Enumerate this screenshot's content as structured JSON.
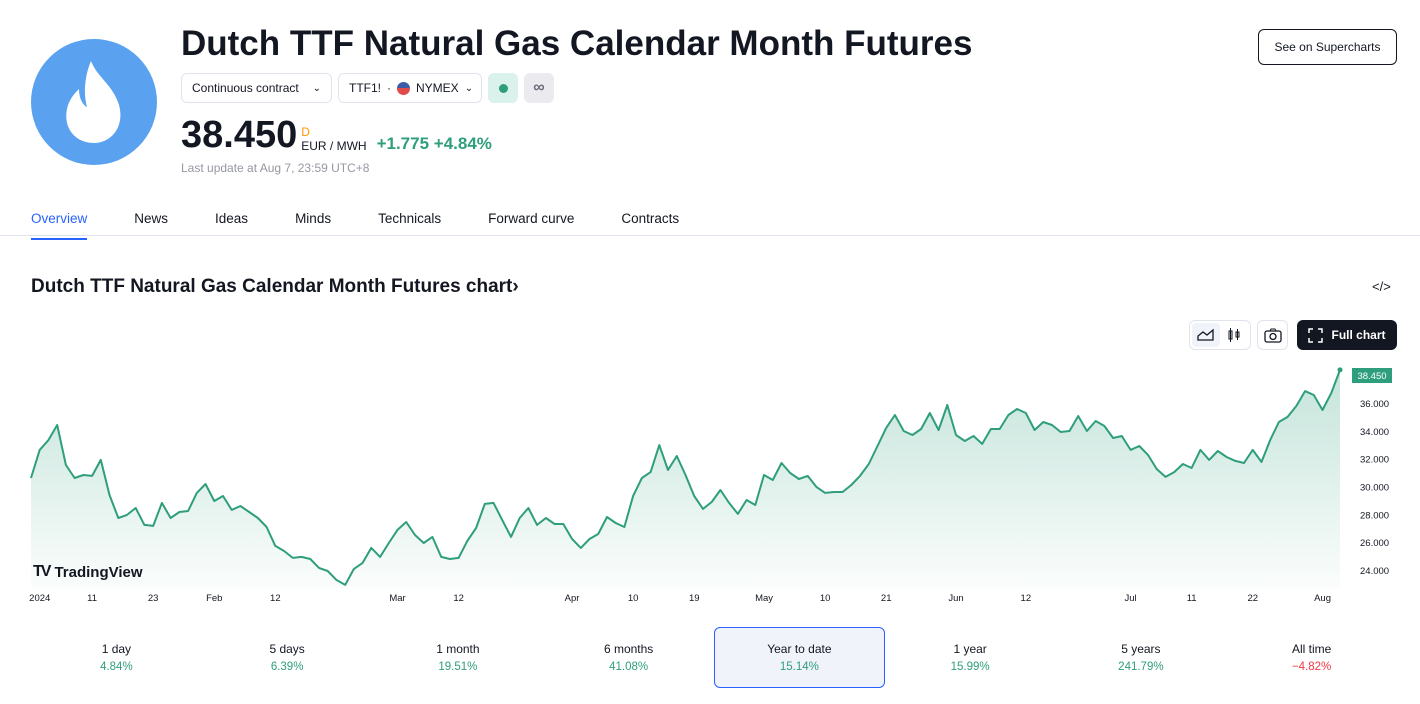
{
  "header": {
    "title": "Dutch TTF Natural Gas Calendar Month Futures",
    "contract_select": "Continuous contract",
    "symbol": "TTF1!",
    "exchange": "NYMEX",
    "price": "38.450",
    "price_marker": "D",
    "unit": "EUR / MWH",
    "change": "+1.775",
    "change_pct": "+4.84%",
    "last_update": "Last update at Aug 7, 23:59 UTC+8",
    "supercharts_button": "See on Supercharts",
    "market_status": "open",
    "accent": "#2e9e7c"
  },
  "tabs": [
    {
      "label": "Overview",
      "active": true
    },
    {
      "label": "News"
    },
    {
      "label": "Ideas"
    },
    {
      "label": "Minds"
    },
    {
      "label": "Technicals"
    },
    {
      "label": "Forward curve"
    },
    {
      "label": "Contracts"
    }
  ],
  "chart_section": {
    "title": "Dutch TTF Natural Gas Calendar Month Futures chart",
    "title_arrow": "›",
    "embed_icon": "</>",
    "full_chart": "Full chart",
    "watermark": "TradingView"
  },
  "chart_data": {
    "type": "area",
    "color": "#2e9e7c",
    "ylim": [
      23,
      38.6
    ],
    "last_value_label": "38.450",
    "y_ticks": [
      "24.000",
      "26.000",
      "28.000",
      "30.000",
      "32.000",
      "34.000",
      "36.000"
    ],
    "x_ticks": [
      {
        "label": "2024",
        "index": 1
      },
      {
        "label": "11",
        "index": 7
      },
      {
        "label": "23",
        "index": 14
      },
      {
        "label": "Feb",
        "index": 21
      },
      {
        "label": "12",
        "index": 28
      },
      {
        "label": "Mar",
        "index": 42
      },
      {
        "label": "12",
        "index": 49
      },
      {
        "label": "Apr",
        "index": 62
      },
      {
        "label": "10",
        "index": 69
      },
      {
        "label": "19",
        "index": 76
      },
      {
        "label": "May",
        "index": 84
      },
      {
        "label": "10",
        "index": 91
      },
      {
        "label": "21",
        "index": 98
      },
      {
        "label": "Jun",
        "index": 106
      },
      {
        "label": "12",
        "index": 114
      },
      {
        "label": "Jul",
        "index": 126
      },
      {
        "label": "11",
        "index": 133
      },
      {
        "label": "22",
        "index": 140
      },
      {
        "label": "Aug",
        "index": 148
      }
    ],
    "values": [
      30.68,
      32.7,
      33.41,
      34.49,
      31.62,
      30.68,
      30.9,
      30.83,
      31.98,
      29.46,
      27.81,
      28.03,
      28.53,
      27.31,
      27.24,
      28.89,
      27.81,
      28.24,
      28.31,
      29.61,
      30.25,
      29.03,
      29.39,
      28.39,
      28.67,
      28.24,
      27.81,
      27.16,
      25.8,
      25.44,
      24.94,
      25.01,
      24.86,
      24.22,
      24.0,
      23.36,
      23.0,
      24.15,
      24.58,
      25.66,
      25.01,
      26.01,
      26.95,
      27.52,
      26.59,
      26.01,
      26.45,
      25.01,
      24.86,
      24.94,
      26.16,
      27.09,
      28.82,
      28.89,
      27.67,
      26.45,
      27.81,
      28.53,
      27.31,
      27.81,
      27.38,
      27.38,
      26.3,
      25.66,
      26.3,
      26.66,
      27.88,
      27.45,
      27.16,
      29.39,
      30.68,
      31.11,
      33.05,
      31.26,
      32.26,
      30.9,
      29.39,
      28.46,
      28.96,
      29.82,
      28.89,
      28.1,
      29.1,
      28.74,
      30.9,
      30.54,
      31.76,
      31.04,
      30.61,
      30.83,
      30.04,
      29.61,
      29.68,
      29.68,
      30.18,
      30.83,
      31.69,
      32.98,
      34.28,
      35.21,
      34.06,
      33.77,
      34.2,
      35.35,
      34.13,
      35.93,
      33.77,
      33.34,
      33.7,
      33.13,
      34.2,
      34.2,
      35.21,
      35.64,
      35.35,
      34.13,
      34.71,
      34.49,
      33.99,
      34.06,
      35.14,
      34.06,
      34.78,
      34.42,
      33.56,
      33.7,
      32.7,
      32.98,
      32.34,
      31.33,
      30.76,
      31.11,
      31.69,
      31.4,
      32.7,
      31.98,
      32.62,
      32.19,
      31.91,
      31.76,
      32.7,
      31.83,
      33.41,
      34.71,
      35.07,
      35.86,
      36.93,
      36.65,
      35.57,
      36.79,
      38.45
    ]
  },
  "performance": [
    {
      "label": "1 day",
      "value": "4.84%",
      "dir": "up"
    },
    {
      "label": "5 days",
      "value": "6.39%",
      "dir": "up"
    },
    {
      "label": "1 month",
      "value": "19.51%",
      "dir": "up"
    },
    {
      "label": "6 months",
      "value": "41.08%",
      "dir": "up"
    },
    {
      "label": "Year to date",
      "value": "15.14%",
      "dir": "up",
      "selected": true
    },
    {
      "label": "1 year",
      "value": "15.99%",
      "dir": "up"
    },
    {
      "label": "5 years",
      "value": "241.79%",
      "dir": "up"
    },
    {
      "label": "All time",
      "value": "−4.82%",
      "dir": "down"
    }
  ],
  "colors": {
    "up": "#2e9e7c",
    "down": "#f23645",
    "link": "#2962ff"
  }
}
